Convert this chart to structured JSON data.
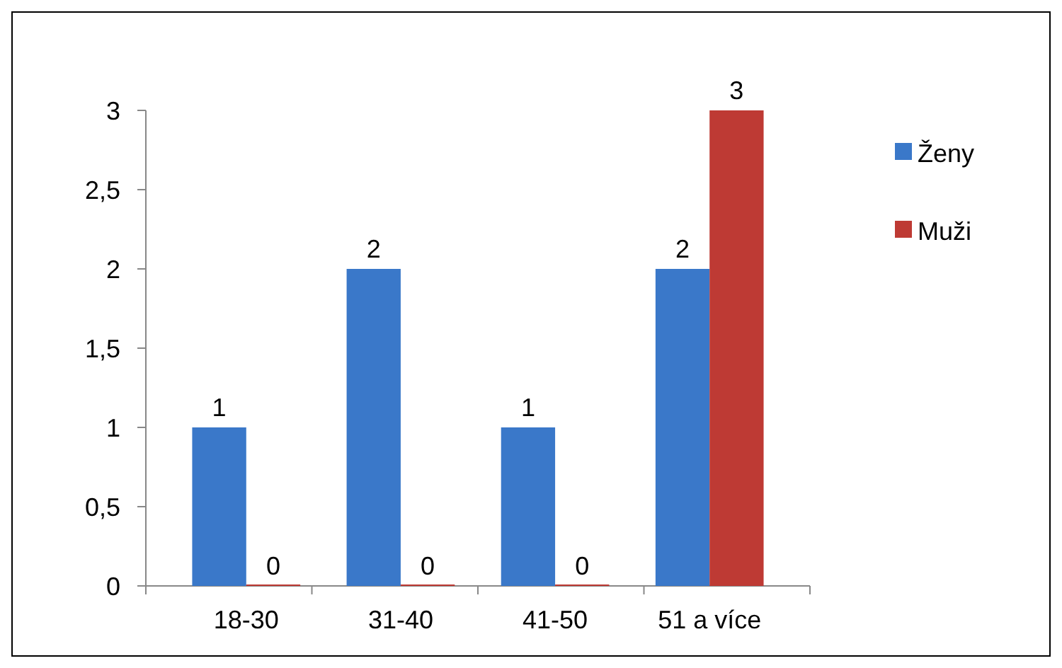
{
  "chart_data": {
    "type": "bar",
    "categories": [
      "18-30",
      "31-40",
      "41-50",
      "51 a více"
    ],
    "series": [
      {
        "name": "Ženy",
        "color": "#3a78c9",
        "values": [
          1,
          2,
          1,
          2
        ]
      },
      {
        "name": "Muži",
        "color": "#be3a34",
        "values": [
          0,
          0,
          0,
          3
        ]
      }
    ],
    "ylim": [
      0,
      3
    ],
    "yticks": [
      0,
      {
        "value": 0.5,
        "label": "0,5"
      },
      1,
      {
        "value": 1.5,
        "label": "1,5"
      },
      2,
      {
        "value": 2.5,
        "label": "2,5"
      },
      3
    ],
    "data_labels": true,
    "legend": "right",
    "grid": false
  }
}
